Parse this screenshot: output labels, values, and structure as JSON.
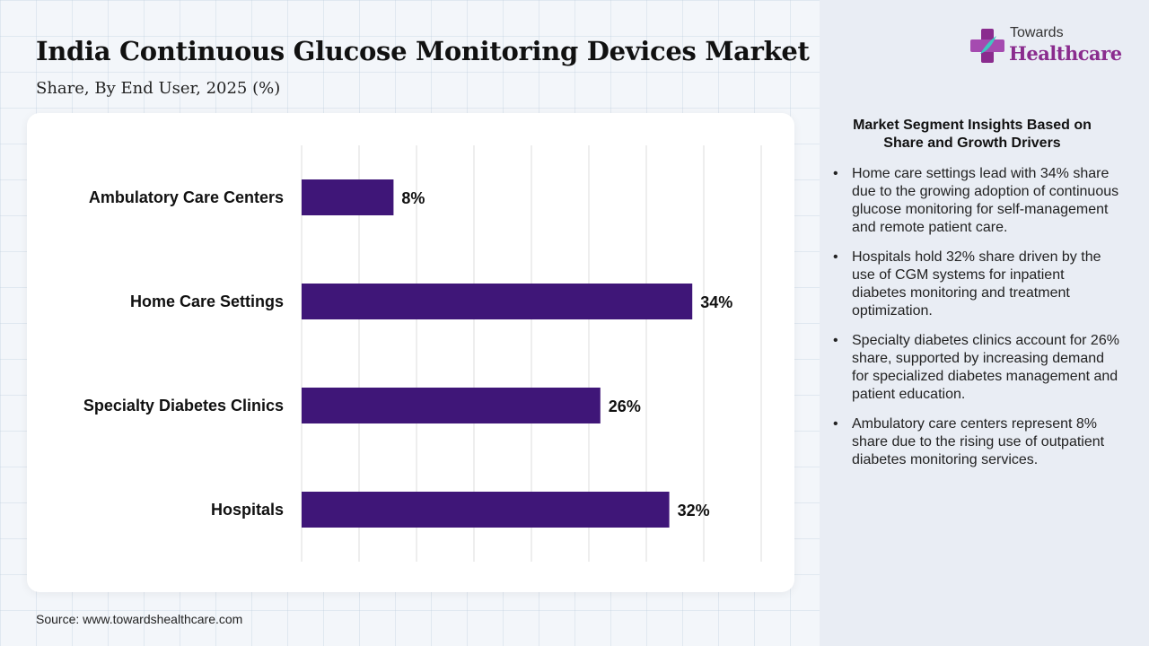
{
  "title": "India Continuous Glucose Monitoring Devices Market",
  "subtitle": "Share, By End User, 2025 (%)",
  "source": "Source: www.towardshealthcare.com",
  "logo": {
    "top": "Towards",
    "main": "Healthcare"
  },
  "colors": {
    "bar": "#3f1678",
    "grid": "#dddddd",
    "brand": "#8a2c8e",
    "sidebar": "#e9edf4"
  },
  "insights": {
    "heading": "Market Segment Insights Based on Share and Growth Drivers",
    "bullets": [
      "Home care settings lead with 34% share due to the growing adoption of continuous glucose monitoring for self-management and remote patient care.",
      "Hospitals hold 32% share driven by the use of CGM systems for inpatient diabetes monitoring and treatment optimization.",
      "Specialty diabetes clinics account for 26% share, supported by increasing demand for specialized diabetes management and patient education.",
      "Ambulatory care centers represent 8% share due to the rising use of outpatient diabetes monitoring services."
    ]
  },
  "chart_data": {
    "type": "bar",
    "orientation": "horizontal",
    "categories": [
      "Ambulatory Care Centers",
      "Home Care Settings",
      "Specialty Diabetes Clinics",
      "Hospitals"
    ],
    "values": [
      8,
      34,
      26,
      32
    ],
    "value_labels": [
      "8%",
      "34%",
      "26%",
      "32%"
    ],
    "xlim": [
      0,
      40
    ],
    "grid": true,
    "legend": "none"
  }
}
